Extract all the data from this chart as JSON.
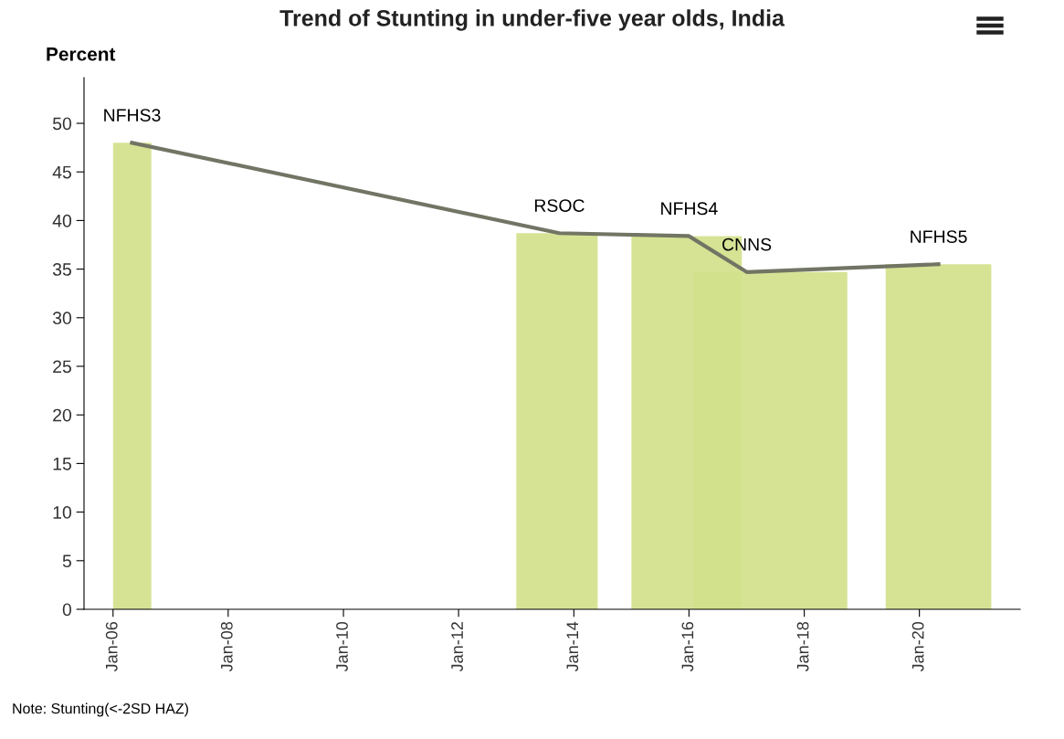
{
  "chart_data": {
    "type": "area",
    "title": "Trend of Stunting in under-five year olds, India",
    "ylabel": "Percent",
    "series": [
      {
        "color": "#d2e08a",
        "x": [
          "2006-01",
          "2006-09"
        ],
        "values": [
          48,
          48
        ]
      },
      {
        "color": "#d2e08a",
        "x": [
          "2013-01",
          "2014-06"
        ],
        "values": [
          38.7,
          38.7
        ]
      },
      {
        "color": "#d2e08a",
        "x": [
          "2015-01",
          "2016-12"
        ],
        "values": [
          38.4,
          38.4
        ]
      },
      {
        "color": "#d2e08a",
        "x": [
          "2016-02",
          "2018-10"
        ],
        "values": [
          34.7,
          34.7
        ]
      },
      {
        "color": "#d2e08a",
        "x": [
          "2019-06",
          "2021-04"
        ],
        "values": [
          35.5,
          35.5
        ]
      },
      {
        "type": "line",
        "color": "#717564",
        "x": [
          "2006-05",
          "2013-10",
          "2016-01",
          "2017-01",
          "2020-05"
        ],
        "values": [
          48,
          38.7,
          38.4,
          34.7,
          35.5
        ]
      }
    ],
    "annotations": [
      {
        "text": "NFHS3",
        "x": "2006-05",
        "y": 48
      },
      {
        "text": "RSOC",
        "x": "2013-10",
        "y": 38.7
      },
      {
        "text": "NFHS4",
        "x": "2016-01",
        "y": 38.4
      },
      {
        "text": "CNNS",
        "x": "2017-01",
        "y": 34.7
      },
      {
        "text": "NFHS5",
        "x": "2020-05",
        "y": 35.5
      },
      "Note: Stunting(<-2SD HAZ)"
    ],
    "xlim": [
      "2005-07",
      "2021-10"
    ],
    "xticks": [
      {
        "value": "2006-01",
        "label": "Jan-06"
      },
      {
        "value": "2008-01",
        "label": "Jan-08"
      },
      {
        "value": "2010-01",
        "label": "Jan-10"
      },
      {
        "value": "2012-01",
        "label": "Jan-12"
      },
      {
        "value": "2014-01",
        "label": "Jan-14"
      },
      {
        "value": "2016-01",
        "label": "Jan-16"
      },
      {
        "value": "2018-01",
        "label": "Jan-18"
      },
      {
        "value": "2020-01",
        "label": "Jan-20"
      }
    ],
    "ylim": [
      0,
      54.7
    ],
    "yticks": [
      0,
      5,
      10,
      15,
      20,
      25,
      30,
      35,
      40,
      45,
      50
    ],
    "grid": false,
    "legend": false
  }
}
